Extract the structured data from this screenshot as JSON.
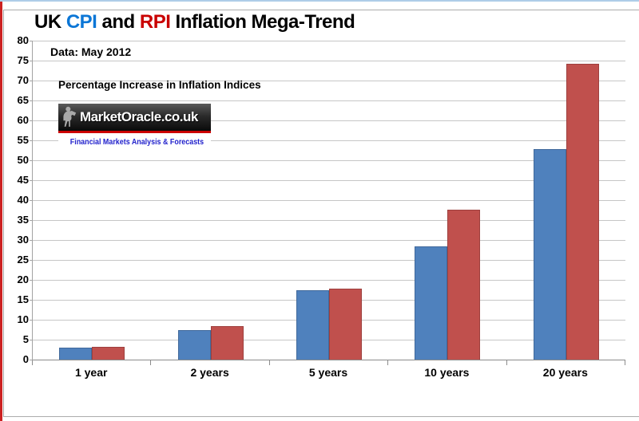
{
  "title": {
    "prefix": "UK ",
    "cpi": "CPI",
    "mid": " and ",
    "rpi": "RPI",
    "suffix": " Inflation Mega-Trend"
  },
  "annotations": {
    "data_date": "Data: May 2012",
    "subtitle": "Percentage Increase in Inflation Indices"
  },
  "logo": {
    "text": "MarketOracle.co.uk",
    "tagline": "Financial Markets Analysis & Forecasts",
    "figure_icon": "seated-oracle-icon"
  },
  "colors": {
    "cpi_bar": "#4F81BD",
    "rpi_bar": "#C0504D",
    "cpi_text": "#0B76D6",
    "rpi_text": "#C90000",
    "gridline": "#C6C6C6",
    "axis": "#8C8C8C",
    "tagline_blue": "#2222CC",
    "logo_red_bar": "#CC0000",
    "left_strip_red": "#CC2222",
    "top_line_blue": "#AECDE8"
  },
  "chart_data": {
    "type": "bar",
    "title": "UK CPI and RPI Inflation Mega-Trend",
    "categories": [
      "1 year",
      "2 years",
      "5 years",
      "10 years",
      "20 years"
    ],
    "series": [
      {
        "name": "CPI",
        "color": "#4F81BD",
        "border_color": "#41699B",
        "values": [
          3.0,
          7.5,
          17.4,
          28.5,
          52.8
        ]
      },
      {
        "name": "RPI",
        "color": "#C0504D",
        "border_color": "#9E403E",
        "values": [
          3.2,
          8.5,
          17.9,
          37.7,
          74.2
        ]
      }
    ],
    "xlabel": "",
    "ylabel": "",
    "ylim": [
      0,
      80
    ],
    "ytick_step": 5,
    "yticks": [
      80,
      75,
      70,
      65,
      60,
      55,
      50,
      45,
      40,
      35,
      30,
      25,
      20,
      15,
      10,
      5,
      0
    ],
    "grid": true,
    "legend": "none"
  }
}
